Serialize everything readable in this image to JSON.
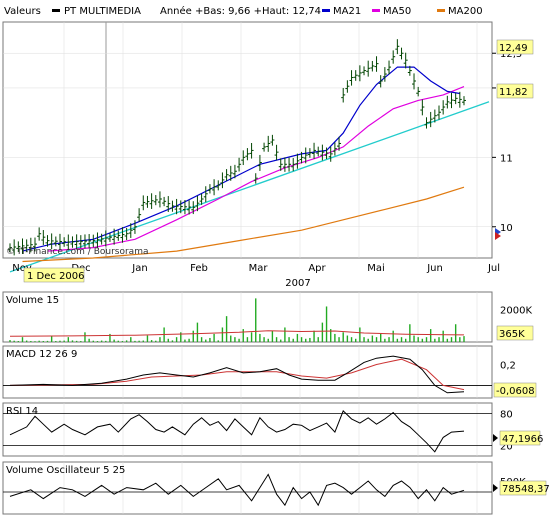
{
  "header": {
    "valeurs_label": "Valeurs",
    "stock_name": "PT MULTIMEDIA",
    "range_text": "Année +Bas: 9,66 +Haut: 12,74",
    "legend": [
      {
        "label": "MA21",
        "color": "#0000cc"
      },
      {
        "label": "MA50",
        "color": "#e000e0"
      },
      {
        "label": "MA200",
        "color": "#e07a10"
      }
    ]
  },
  "credit": "© IT-Finance.com / Boursorama",
  "colors": {
    "price_bar": "#004400",
    "ma21": "#0000cc",
    "ma50": "#e000e0",
    "ma200": "#e07a10",
    "trendline": "#22cccc",
    "volume_bar": "#22aa22",
    "volume_ma": "#cc3333",
    "macd": "#000000",
    "signal": "#cc3333",
    "highlight_box": "#ffff99"
  },
  "x_axis": {
    "months": [
      "Nov",
      "Dec",
      "Jan",
      "Feb",
      "Mar",
      "Apr",
      "Mai",
      "Jun",
      "Jul"
    ],
    "year": "2007",
    "cursor_date": "1 Dec 2006"
  },
  "panels": [
    {
      "title": "Volume 15",
      "ticks": [
        "2000K"
      ],
      "value_box": "365K"
    },
    {
      "title": "MACD 12 26 9",
      "ticks": [
        "0,2"
      ],
      "value_box": "-0,0608"
    },
    {
      "title": "RSI 14",
      "ticks": [
        "80",
        "20"
      ],
      "value_box": "47,1966"
    },
    {
      "title": "Volume Oscillateur 5 25",
      "ticks": [
        "500K"
      ],
      "value_box": "78548,37"
    }
  ],
  "chart_data": [
    {
      "type": "candlestick",
      "title": "PT MULTIMEDIA",
      "ylim": [
        9.55,
        12.95
      ],
      "y_ticks": [
        "12,5",
        "12",
        "11",
        "10"
      ],
      "value_boxes": {
        "last_price": "11,82",
        "high": "12,49"
      },
      "price_path": [
        [
          0,
          9.7
        ],
        [
          6,
          9.75
        ],
        [
          7,
          9.9
        ],
        [
          9,
          9.8
        ],
        [
          14,
          9.78
        ],
        [
          20,
          9.8
        ],
        [
          24,
          9.85
        ],
        [
          28,
          9.9
        ],
        [
          30,
          10.0
        ],
        [
          32,
          10.35
        ],
        [
          36,
          10.4
        ],
        [
          39,
          10.3
        ],
        [
          44,
          10.28
        ],
        [
          46,
          10.4
        ],
        [
          48,
          10.55
        ],
        [
          50,
          10.6
        ],
        [
          52,
          10.75
        ],
        [
          54,
          10.8
        ],
        [
          56,
          11.0
        ],
        [
          58,
          11.1
        ],
        [
          59,
          10.7
        ],
        [
          61,
          11.15
        ],
        [
          63,
          11.25
        ],
        [
          65,
          10.9
        ],
        [
          68,
          10.9
        ],
        [
          70,
          11.0
        ],
        [
          73,
          11.1
        ],
        [
          77,
          11.05
        ],
        [
          79,
          11.2
        ],
        [
          80,
          11.9
        ],
        [
          82,
          12.15
        ],
        [
          85,
          12.25
        ],
        [
          88,
          12.35
        ],
        [
          89,
          12.1
        ],
        [
          91,
          12.3
        ],
        [
          93,
          12.6
        ],
        [
          95,
          12.4
        ],
        [
          98,
          11.95
        ],
        [
          100,
          11.5
        ],
        [
          103,
          11.65
        ],
        [
          105,
          11.8
        ],
        [
          107,
          11.85
        ],
        [
          109,
          11.82
        ]
      ],
      "ma21": [
        [
          3,
          9.65
        ],
        [
          10,
          9.75
        ],
        [
          20,
          9.82
        ],
        [
          30,
          10.05
        ],
        [
          40,
          10.3
        ],
        [
          50,
          10.6
        ],
        [
          60,
          10.9
        ],
        [
          70,
          11.05
        ],
        [
          76,
          11.1
        ],
        [
          80,
          11.35
        ],
        [
          84,
          11.75
        ],
        [
          88,
          12.05
        ],
        [
          93,
          12.3
        ],
        [
          97,
          12.3
        ],
        [
          101,
          12.1
        ],
        [
          105,
          11.95
        ],
        [
          108,
          11.92
        ]
      ],
      "ma50": [
        [
          9,
          9.65
        ],
        [
          20,
          9.7
        ],
        [
          30,
          9.82
        ],
        [
          40,
          10.1
        ],
        [
          50,
          10.4
        ],
        [
          58,
          10.65
        ],
        [
          66,
          10.85
        ],
        [
          74,
          11.0
        ],
        [
          80,
          11.15
        ],
        [
          86,
          11.45
        ],
        [
          92,
          11.7
        ],
        [
          98,
          11.82
        ],
        [
          104,
          11.9
        ],
        [
          109,
          12.02
        ]
      ],
      "ma200": [
        [
          3,
          9.5
        ],
        [
          20,
          9.55
        ],
        [
          40,
          9.65
        ],
        [
          55,
          9.8
        ],
        [
          70,
          9.95
        ],
        [
          80,
          10.1
        ],
        [
          90,
          10.25
        ],
        [
          100,
          10.4
        ],
        [
          109,
          10.57
        ]
      ],
      "trendline": [
        [
          0,
          9.35
        ],
        [
          115,
          11.8
        ]
      ]
    },
    {
      "type": "bar",
      "title": "Volume 15",
      "ylim": [
        0,
        2600
      ],
      "values": [
        120,
        80,
        60,
        300,
        90,
        60,
        50,
        80,
        60,
        70,
        400,
        60,
        80,
        90,
        300,
        100,
        70,
        60,
        600,
        200,
        80,
        60,
        90,
        70,
        500,
        150,
        80,
        60,
        100,
        300,
        70,
        80,
        90,
        400,
        120,
        80,
        300,
        900,
        200,
        100,
        300,
        600,
        150,
        200,
        700,
        1200,
        300,
        150,
        250,
        500,
        100,
        900,
        1600,
        400,
        300,
        200,
        800,
        300,
        600,
        2700,
        500,
        300,
        200,
        700,
        300,
        150,
        900,
        300,
        200,
        500,
        300,
        200,
        250,
        700,
        300,
        1200,
        2200,
        800,
        500,
        300,
        600,
        400,
        300,
        200,
        900,
        300,
        200,
        400,
        300,
        500,
        200,
        300,
        700,
        200,
        300,
        200,
        1100,
        400,
        300,
        200,
        300,
        800,
        200,
        300,
        700,
        200,
        300,
        1100,
        300,
        365
      ],
      "ma_line": [
        [
          0,
          350
        ],
        [
          15,
          380
        ],
        [
          30,
          420
        ],
        [
          45,
          520
        ],
        [
          55,
          600
        ],
        [
          62,
          700
        ],
        [
          70,
          650
        ],
        [
          78,
          680
        ],
        [
          85,
          560
        ],
        [
          95,
          480
        ],
        [
          105,
          450
        ],
        [
          109,
          440
        ]
      ]
    },
    {
      "type": "line",
      "title": "MACD 12 26 9",
      "ylim": [
        -0.12,
        0.3
      ],
      "series": [
        {
          "values": [
            [
              0,
              0.0
            ],
            [
              8,
              0.01
            ],
            [
              15,
              0.0
            ],
            [
              22,
              0.02
            ],
            [
              28,
              0.06
            ],
            [
              32,
              0.1
            ],
            [
              36,
              0.12
            ],
            [
              40,
              0.1
            ],
            [
              44,
              0.08
            ],
            [
              48,
              0.12
            ],
            [
              52,
              0.17
            ],
            [
              56,
              0.12
            ],
            [
              60,
              0.13
            ],
            [
              64,
              0.16
            ],
            [
              67,
              0.1
            ],
            [
              70,
              0.06
            ],
            [
              74,
              0.05
            ],
            [
              78,
              0.05
            ],
            [
              81,
              0.12
            ],
            [
              85,
              0.22
            ],
            [
              88,
              0.26
            ],
            [
              92,
              0.28
            ],
            [
              96,
              0.25
            ],
            [
              99,
              0.15
            ],
            [
              102,
              0.0
            ],
            [
              105,
              -0.07
            ],
            [
              109,
              -0.06
            ]
          ]
        },
        {
          "values": [
            [
              0,
              0.0
            ],
            [
              10,
              0.005
            ],
            [
              20,
              0.01
            ],
            [
              28,
              0.04
            ],
            [
              34,
              0.08
            ],
            [
              40,
              0.09
            ],
            [
              46,
              0.1
            ],
            [
              52,
              0.13
            ],
            [
              58,
              0.13
            ],
            [
              64,
              0.13
            ],
            [
              70,
              0.09
            ],
            [
              76,
              0.07
            ],
            [
              82,
              0.12
            ],
            [
              88,
              0.2
            ],
            [
              94,
              0.25
            ],
            [
              100,
              0.15
            ],
            [
              104,
              0.0
            ],
            [
              109,
              -0.04
            ]
          ]
        }
      ]
    },
    {
      "type": "line",
      "title": "RSI 14",
      "ylim": [
        0,
        100
      ],
      "series": [
        {
          "values": [
            [
              0,
              40
            ],
            [
              4,
              55
            ],
            [
              6,
              75
            ],
            [
              8,
              60
            ],
            [
              10,
              45
            ],
            [
              13,
              60
            ],
            [
              15,
              50
            ],
            [
              18,
              40
            ],
            [
              21,
              55
            ],
            [
              24,
              60
            ],
            [
              26,
              45
            ],
            [
              29,
              70
            ],
            [
              31,
              78
            ],
            [
              33,
              65
            ],
            [
              35,
              50
            ],
            [
              37,
              45
            ],
            [
              39,
              55
            ],
            [
              42,
              40
            ],
            [
              44,
              60
            ],
            [
              46,
              72
            ],
            [
              48,
              58
            ],
            [
              50,
              65
            ],
            [
              52,
              48
            ],
            [
              54,
              70
            ],
            [
              56,
              55
            ],
            [
              58,
              40
            ],
            [
              60,
              72
            ],
            [
              62,
              55
            ],
            [
              64,
              45
            ],
            [
              66,
              50
            ],
            [
              68,
              60
            ],
            [
              70,
              58
            ],
            [
              72,
              48
            ],
            [
              74,
              55
            ],
            [
              76,
              62
            ],
            [
              78,
              45
            ],
            [
              80,
              85
            ],
            [
              82,
              70
            ],
            [
              84,
              62
            ],
            [
              86,
              72
            ],
            [
              88,
              60
            ],
            [
              90,
              70
            ],
            [
              92,
              82
            ],
            [
              94,
              65
            ],
            [
              96,
              55
            ],
            [
              98,
              40
            ],
            [
              100,
              25
            ],
            [
              102,
              8
            ],
            [
              104,
              35
            ],
            [
              106,
              45
            ],
            [
              109,
              47
            ]
          ]
        }
      ]
    },
    {
      "type": "line",
      "title": "Volume Oscillateur 5 25",
      "ylim": [
        -1000,
        1000
      ],
      "series": [
        {
          "values": [
            [
              0,
              -200
            ],
            [
              5,
              100
            ],
            [
              8,
              -300
            ],
            [
              12,
              200
            ],
            [
              15,
              100
            ],
            [
              18,
              -200
            ],
            [
              22,
              300
            ],
            [
              25,
              -100
            ],
            [
              28,
              200
            ],
            [
              32,
              100
            ],
            [
              35,
              400
            ],
            [
              38,
              -100
            ],
            [
              41,
              300
            ],
            [
              44,
              -200
            ],
            [
              47,
              200
            ],
            [
              50,
              600
            ],
            [
              52,
              100
            ],
            [
              55,
              300
            ],
            [
              58,
              -400
            ],
            [
              60,
              200
            ],
            [
              62,
              800
            ],
            [
              64,
              -100
            ],
            [
              66,
              -600
            ],
            [
              68,
              200
            ],
            [
              70,
              -300
            ],
            [
              72,
              0
            ],
            [
              74,
              -600
            ],
            [
              76,
              300
            ],
            [
              78,
              400
            ],
            [
              80,
              200
            ],
            [
              82,
              -100
            ],
            [
              84,
              200
            ],
            [
              86,
              500
            ],
            [
              88,
              100
            ],
            [
              90,
              -200
            ],
            [
              92,
              300
            ],
            [
              94,
              500
            ],
            [
              96,
              200
            ],
            [
              98,
              -300
            ],
            [
              100,
              100
            ],
            [
              102,
              -400
            ],
            [
              104,
              200
            ],
            [
              106,
              -100
            ],
            [
              109,
              79
            ]
          ]
        }
      ]
    }
  ]
}
